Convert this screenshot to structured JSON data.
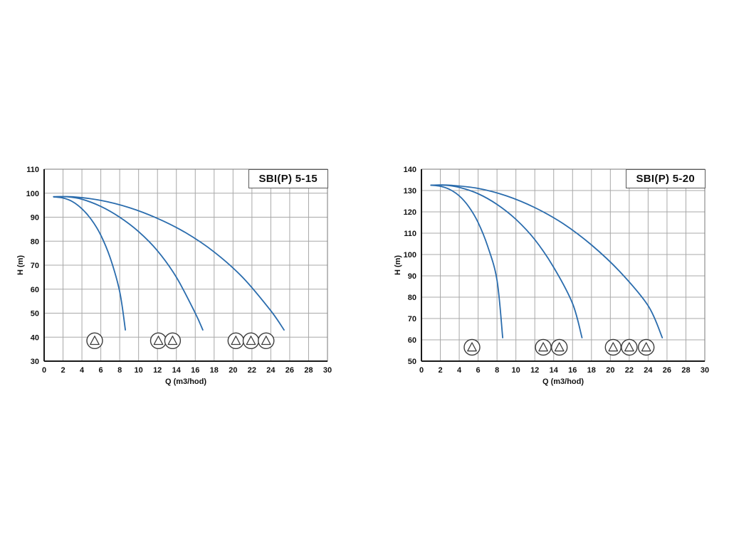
{
  "page": {
    "background": "#ffffff",
    "grid_color": "#a8a8a8",
    "axis_color": "#1a1a1a",
    "border_color": "#7a7a7a",
    "icon_color": "#3c3c3c"
  },
  "chart_data": [
    {
      "type": "line",
      "title": "SBI(P) 5-15",
      "xlabel": "Q (m3/hod)",
      "ylabel": "H (m)",
      "xlim": [
        0,
        30
      ],
      "xtick_step": 2,
      "ylim": [
        30,
        110
      ],
      "ytick_step": 10,
      "grid": true,
      "legend": "none",
      "curve_color": "#2a6cad",
      "series": [
        {
          "name": "1 pump",
          "points": [
            [
              1,
              98.5
            ],
            [
              2,
              98
            ],
            [
              3,
              96.5
            ],
            [
              4,
              93.5
            ],
            [
              5,
              89
            ],
            [
              6,
              82.5
            ],
            [
              7,
              73
            ],
            [
              8,
              59
            ],
            [
              8.6,
              43
            ]
          ]
        },
        {
          "name": "2 pumps",
          "points": [
            [
              1,
              98.5
            ],
            [
              2.5,
              98.5
            ],
            [
              4,
              97.5
            ],
            [
              6,
              94.5
            ],
            [
              8,
              90
            ],
            [
              10,
              84
            ],
            [
              12,
              76
            ],
            [
              14,
              65
            ],
            [
              16,
              50
            ],
            [
              16.8,
              43
            ]
          ]
        },
        {
          "name": "3 pumps",
          "points": [
            [
              1,
              98.5
            ],
            [
              3,
              98.5
            ],
            [
              6,
              97
            ],
            [
              9,
              94
            ],
            [
              12,
              89.5
            ],
            [
              15,
              83.5
            ],
            [
              18,
              75.5
            ],
            [
              21,
              65
            ],
            [
              24,
              51
            ],
            [
              25.4,
              43
            ]
          ]
        }
      ],
      "pump_groups": [
        {
          "h": 38.5,
          "q": [
            5.35
          ]
        },
        {
          "h": 38.5,
          "q": [
            12.1,
            13.6
          ]
        },
        {
          "h": 38.5,
          "q": [
            20.3,
            21.9,
            23.5
          ]
        }
      ]
    },
    {
      "type": "line",
      "title": "SBI(P) 5-20",
      "xlabel": "Q (m3/hod)",
      "ylabel": "H (m)",
      "xlim": [
        0,
        30
      ],
      "xtick_step": 2,
      "ylim": [
        50,
        140
      ],
      "ytick_step": 10,
      "grid": true,
      "legend": "none",
      "curve_color": "#2a6cad",
      "series": [
        {
          "name": "1 pump",
          "points": [
            [
              1,
              132.5
            ],
            [
              2,
              132
            ],
            [
              3,
              130.5
            ],
            [
              4,
              127.5
            ],
            [
              5,
              122.5
            ],
            [
              6,
              115
            ],
            [
              7,
              104
            ],
            [
              8,
              88
            ],
            [
              8.6,
              61
            ]
          ]
        },
        {
          "name": "2 pumps",
          "points": [
            [
              1,
              132.5
            ],
            [
              2.5,
              132.5
            ],
            [
              4,
              131.5
            ],
            [
              6,
              128.5
            ],
            [
              8,
              123.5
            ],
            [
              10,
              116.5
            ],
            [
              12,
              107
            ],
            [
              14,
              94
            ],
            [
              16,
              77
            ],
            [
              17,
              61
            ]
          ]
        },
        {
          "name": "3 pumps",
          "points": [
            [
              1,
              132.5
            ],
            [
              3,
              132.5
            ],
            [
              6,
              131
            ],
            [
              9,
              127.5
            ],
            [
              12,
              122
            ],
            [
              15,
              114.5
            ],
            [
              18,
              104.5
            ],
            [
              21,
              92
            ],
            [
              24,
              76
            ],
            [
              25.5,
              61
            ]
          ]
        }
      ],
      "pump_groups": [
        {
          "h": 56.5,
          "q": [
            5.35
          ]
        },
        {
          "h": 56.5,
          "q": [
            12.9,
            14.6
          ]
        },
        {
          "h": 56.5,
          "q": [
            20.3,
            22.0,
            23.8
          ]
        }
      ]
    }
  ]
}
